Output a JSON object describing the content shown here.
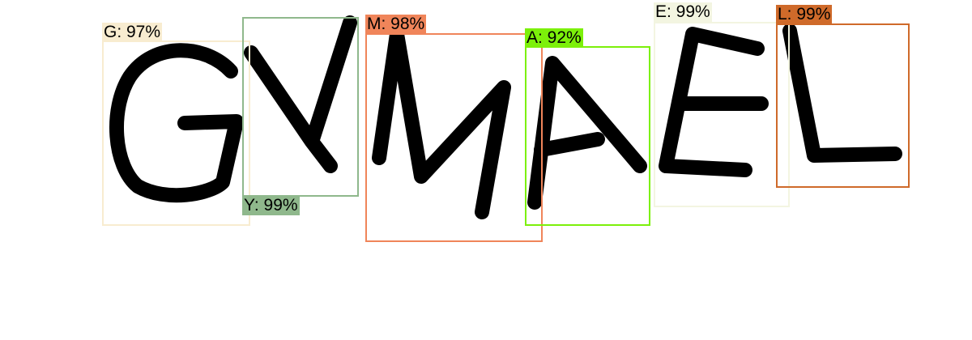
{
  "detections": [
    {
      "label": "G: 97%",
      "color": "#f8ecd0"
    },
    {
      "label": "Y: 99%",
      "color": "#8fb88c"
    },
    {
      "label": "M: 98%",
      "color": "#f0855a"
    },
    {
      "label": "A: 92%",
      "color": "#7cf00a"
    },
    {
      "label": "E: 99%",
      "color": "#f3f5e1"
    },
    {
      "label": "L: 99%",
      "color": "#cf6a2a"
    }
  ]
}
